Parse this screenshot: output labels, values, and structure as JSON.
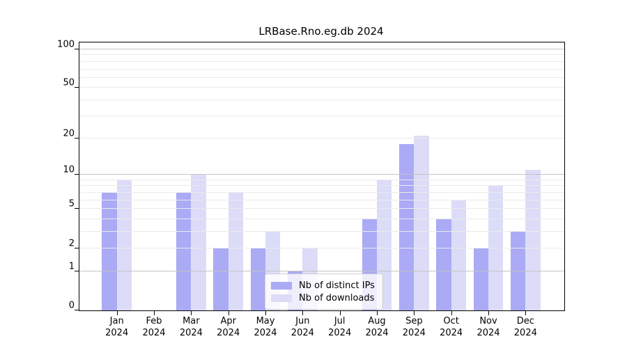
{
  "title": "LRBase.Rno.eg.db 2024",
  "colors": {
    "distinct_ips": "#aaaaf5",
    "downloads": "#dcdcf8",
    "major_grid": "#c4c4c4",
    "minor_grid": "#ebebeb",
    "axis": "#000000",
    "background": "#ffffff"
  },
  "legend": {
    "items": [
      {
        "label": "Nb of distinct IPs",
        "color_key": "distinct_ips"
      },
      {
        "label": "Nb of downloads",
        "color_key": "downloads"
      }
    ]
  },
  "chart_data": {
    "type": "bar",
    "title": "LRBase.Rno.eg.db 2024",
    "categories": [
      "Jan 2024",
      "Feb 2024",
      "Mar 2024",
      "Apr 2024",
      "May 2024",
      "Jun 2024",
      "Jul 2024",
      "Aug 2024",
      "Sep 2024",
      "Oct 2024",
      "Nov 2024",
      "Dec 2024"
    ],
    "series": [
      {
        "name": "Nb of distinct IPs",
        "values": [
          7,
          0,
          7,
          2,
          2,
          1,
          0,
          4,
          18,
          4,
          2,
          3
        ]
      },
      {
        "name": "Nb of downloads",
        "values": [
          9,
          0,
          10,
          7,
          3,
          2,
          0,
          9,
          21,
          6,
          8,
          11
        ]
      }
    ],
    "xlabel": "",
    "ylabel": "",
    "yscale": "log1p",
    "yticks": [
      0,
      1,
      2,
      5,
      10,
      20,
      50,
      100
    ],
    "ylim": [
      0,
      113
    ],
    "grid": "horizontal",
    "legend_position": "inside-bottom-center"
  }
}
